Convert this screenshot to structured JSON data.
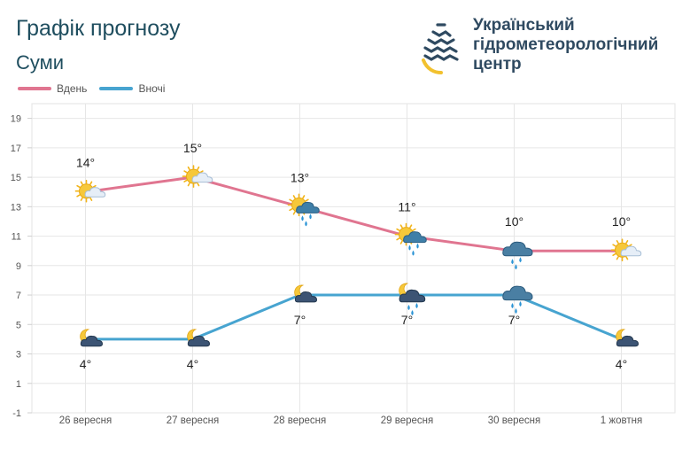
{
  "header": {
    "title": "Графік прогнозу",
    "city": "Суми"
  },
  "logo": {
    "line1": "Український",
    "line2": "гідрометеорологічний",
    "line3": "центр"
  },
  "colors": {
    "day": "#e07590",
    "night": "#47a4d0"
  },
  "chart_data": {
    "type": "line",
    "categories": [
      "26 вересня",
      "27 вересня",
      "28 вересня",
      "29 вересня",
      "30 вересня",
      "1 жовтня"
    ],
    "series": [
      {
        "name": "Вдень",
        "values": [
          14,
          15,
          13,
          11,
          10,
          10
        ],
        "labels": [
          "14°",
          "15°",
          "13°",
          "11°",
          "10°",
          "10°"
        ],
        "icons": [
          "sun-cloud-icon",
          "sun-cloud-icon",
          "sun-rain-cloud-icon",
          "sun-rain-cloud-icon",
          "rain-cloud-icon",
          "sun-cloud-icon"
        ]
      },
      {
        "name": "Вночі",
        "values": [
          4,
          4,
          7,
          7,
          7,
          4
        ],
        "labels": [
          "4°",
          "4°",
          "7°",
          "7°",
          "7°",
          "4°"
        ],
        "icons": [
          "moon-cloud-icon",
          "moon-cloud-icon",
          "moon-cloud-icon",
          "moon-rain-cloud-icon",
          "rain-cloud-icon",
          "moon-cloud-icon"
        ]
      }
    ],
    "ylim": [
      -1,
      20
    ],
    "yticks": [
      "19",
      "17",
      "15",
      "13",
      "11",
      "9",
      "7",
      "5",
      "3",
      "1",
      "-1"
    ],
    "grid": true,
    "legend_position": "top-left"
  }
}
